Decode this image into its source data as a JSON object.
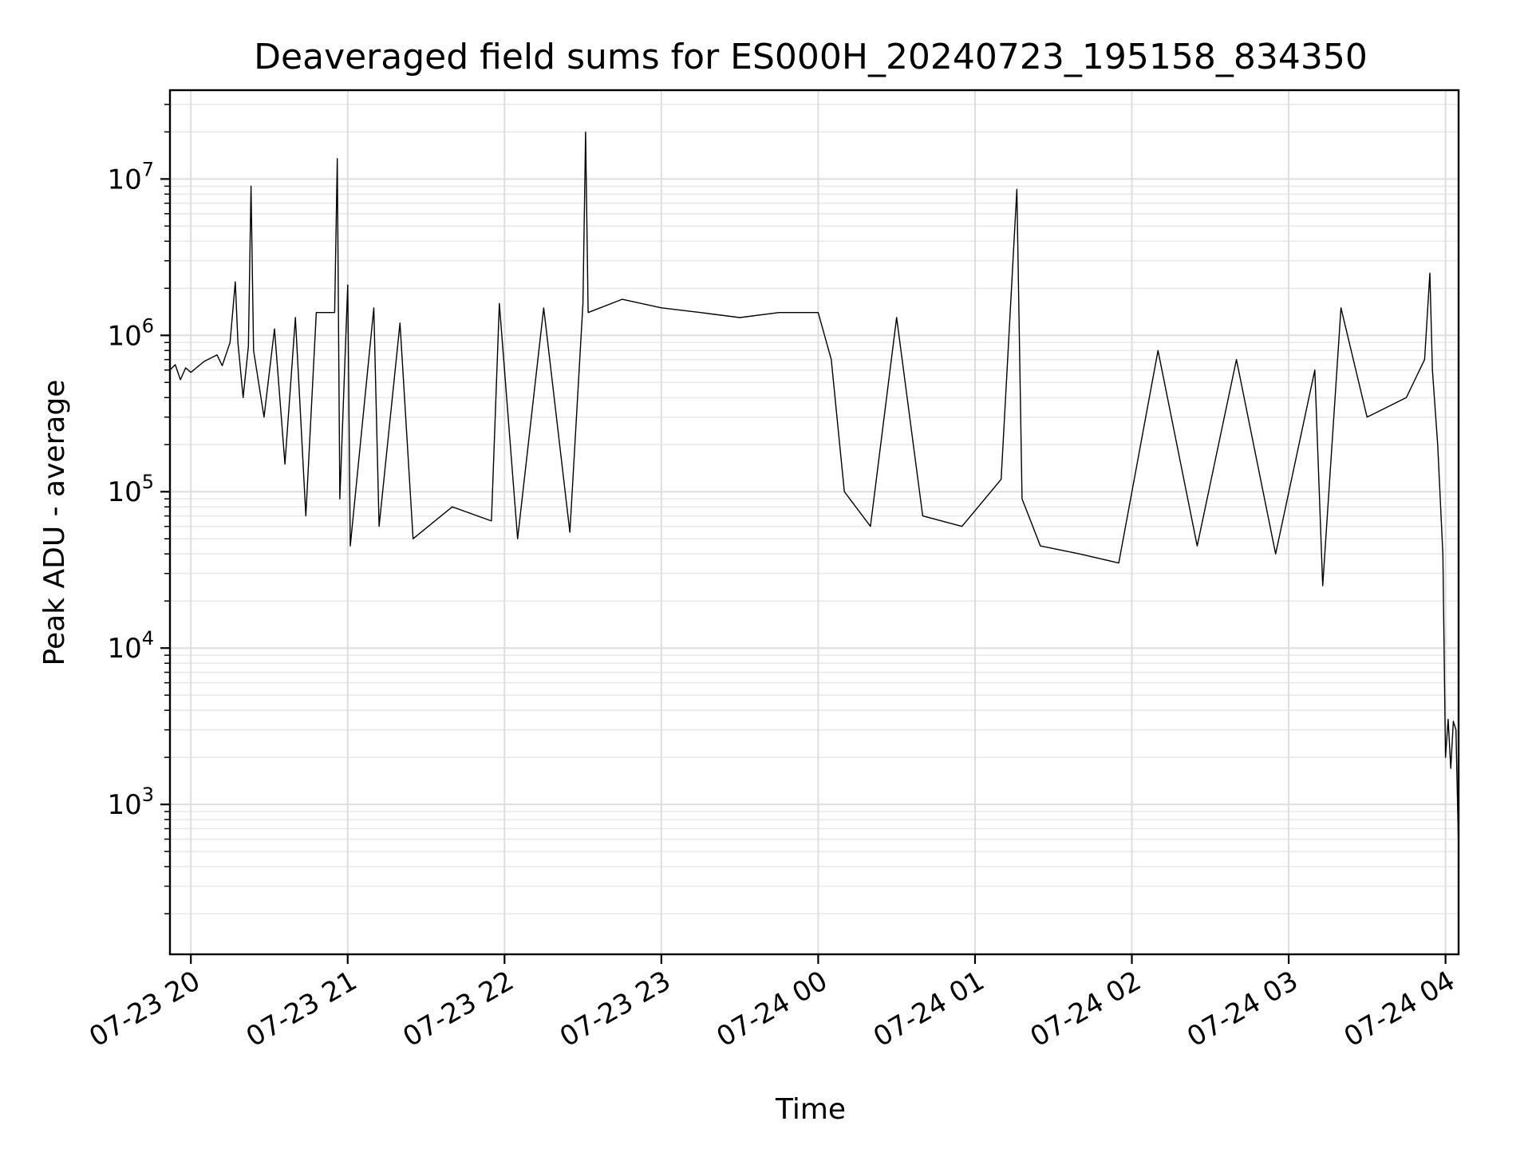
{
  "chart_data": {
    "type": "line",
    "title": "Deaveraged field sums for ES000H_20240723_195158_834350",
    "xlabel": "Time",
    "ylabel": "Peak ADU - average",
    "x_scale": "time",
    "y_scale": "log",
    "xlim": [
      "2024-07-23 19:52",
      "2024-07-24 04:05"
    ],
    "ylim": [
      110,
      37000000
    ],
    "grid": "major-and-minor",
    "x_tick_labels": [
      "07-23 20",
      "07-23 21",
      "07-23 22",
      "07-23 23",
      "07-24 00",
      "07-24 01",
      "07-24 02",
      "07-24 03",
      "07-24 04"
    ],
    "y_tick_values": [
      1000,
      10000,
      100000,
      1000000,
      10000000
    ],
    "series": [
      {
        "color": "#000000",
        "points": [
          [
            "2024-07-23 19:52",
            600000
          ],
          [
            "2024-07-23 19:54",
            650000
          ],
          [
            "2024-07-23 19:56",
            520000
          ],
          [
            "2024-07-23 19:58",
            620000
          ],
          [
            "2024-07-23 20:00",
            580000
          ],
          [
            "2024-07-23 20:05",
            680000
          ],
          [
            "2024-07-23 20:10",
            750000
          ],
          [
            "2024-07-23 20:12",
            640000
          ],
          [
            "2024-07-23 20:15",
            900000
          ],
          [
            "2024-07-23 20:17",
            2200000
          ],
          [
            "2024-07-23 20:18",
            900000
          ],
          [
            "2024-07-23 20:20",
            400000
          ],
          [
            "2024-07-23 20:22",
            850000
          ],
          [
            "2024-07-23 20:23",
            9000000
          ],
          [
            "2024-07-23 20:24",
            800000
          ],
          [
            "2024-07-23 20:28",
            300000
          ],
          [
            "2024-07-23 20:32",
            1100000
          ],
          [
            "2024-07-23 20:36",
            150000
          ],
          [
            "2024-07-23 20:40",
            1300000
          ],
          [
            "2024-07-23 20:44",
            70000
          ],
          [
            "2024-07-23 20:48",
            1400000
          ],
          [
            "2024-07-23 20:55",
            1400000
          ],
          [
            "2024-07-23 20:56",
            13500000
          ],
          [
            "2024-07-23 20:57",
            90000
          ],
          [
            "2024-07-23 21:00",
            2100000
          ],
          [
            "2024-07-23 21:01",
            45000
          ],
          [
            "2024-07-23 21:10",
            1500000
          ],
          [
            "2024-07-23 21:12",
            60000
          ],
          [
            "2024-07-23 21:20",
            1200000
          ],
          [
            "2024-07-23 21:25",
            50000
          ],
          [
            "2024-07-23 21:40",
            80000
          ],
          [
            "2024-07-23 21:55",
            65000
          ],
          [
            "2024-07-23 21:58",
            1600000
          ],
          [
            "2024-07-23 22:05",
            50000
          ],
          [
            "2024-07-23 22:15",
            1500000
          ],
          [
            "2024-07-23 22:25",
            55000
          ],
          [
            "2024-07-23 22:30",
            1600000
          ],
          [
            "2024-07-23 22:31",
            20000000
          ],
          [
            "2024-07-23 22:32",
            1400000
          ],
          [
            "2024-07-23 22:45",
            1700000
          ],
          [
            "2024-07-23 23:00",
            1500000
          ],
          [
            "2024-07-23 23:15",
            1400000
          ],
          [
            "2024-07-23 23:30",
            1300000
          ],
          [
            "2024-07-23 23:45",
            1400000
          ],
          [
            "2024-07-24 00:00",
            1400000
          ],
          [
            "2024-07-24 00:05",
            700000
          ],
          [
            "2024-07-24 00:10",
            100000
          ],
          [
            "2024-07-24 00:20",
            60000
          ],
          [
            "2024-07-24 00:30",
            1300000
          ],
          [
            "2024-07-24 00:40",
            70000
          ],
          [
            "2024-07-24 00:55",
            60000
          ],
          [
            "2024-07-24 01:10",
            120000
          ],
          [
            "2024-07-24 01:16",
            8600000
          ],
          [
            "2024-07-24 01:18",
            90000
          ],
          [
            "2024-07-24 01:25",
            45000
          ],
          [
            "2024-07-24 01:40",
            40000
          ],
          [
            "2024-07-24 01:55",
            35000
          ],
          [
            "2024-07-24 02:10",
            800000
          ],
          [
            "2024-07-24 02:25",
            45000
          ],
          [
            "2024-07-24 02:40",
            700000
          ],
          [
            "2024-07-24 02:55",
            40000
          ],
          [
            "2024-07-24 03:10",
            600000
          ],
          [
            "2024-07-24 03:13",
            25000
          ],
          [
            "2024-07-24 03:20",
            1500000
          ],
          [
            "2024-07-24 03:30",
            300000
          ],
          [
            "2024-07-24 03:45",
            400000
          ],
          [
            "2024-07-24 03:52",
            700000
          ],
          [
            "2024-07-24 03:54",
            2500000
          ],
          [
            "2024-07-24 03:55",
            600000
          ],
          [
            "2024-07-24 03:57",
            200000
          ],
          [
            "2024-07-24 03:59",
            40000
          ],
          [
            "2024-07-24 04:00",
            2000
          ],
          [
            "2024-07-24 04:01",
            3500
          ],
          [
            "2024-07-24 04:02",
            1700
          ],
          [
            "2024-07-24 04:03",
            3400
          ],
          [
            "2024-07-24 04:04",
            3000
          ],
          [
            "2024-07-24 04:05",
            500
          ]
        ]
      }
    ]
  }
}
